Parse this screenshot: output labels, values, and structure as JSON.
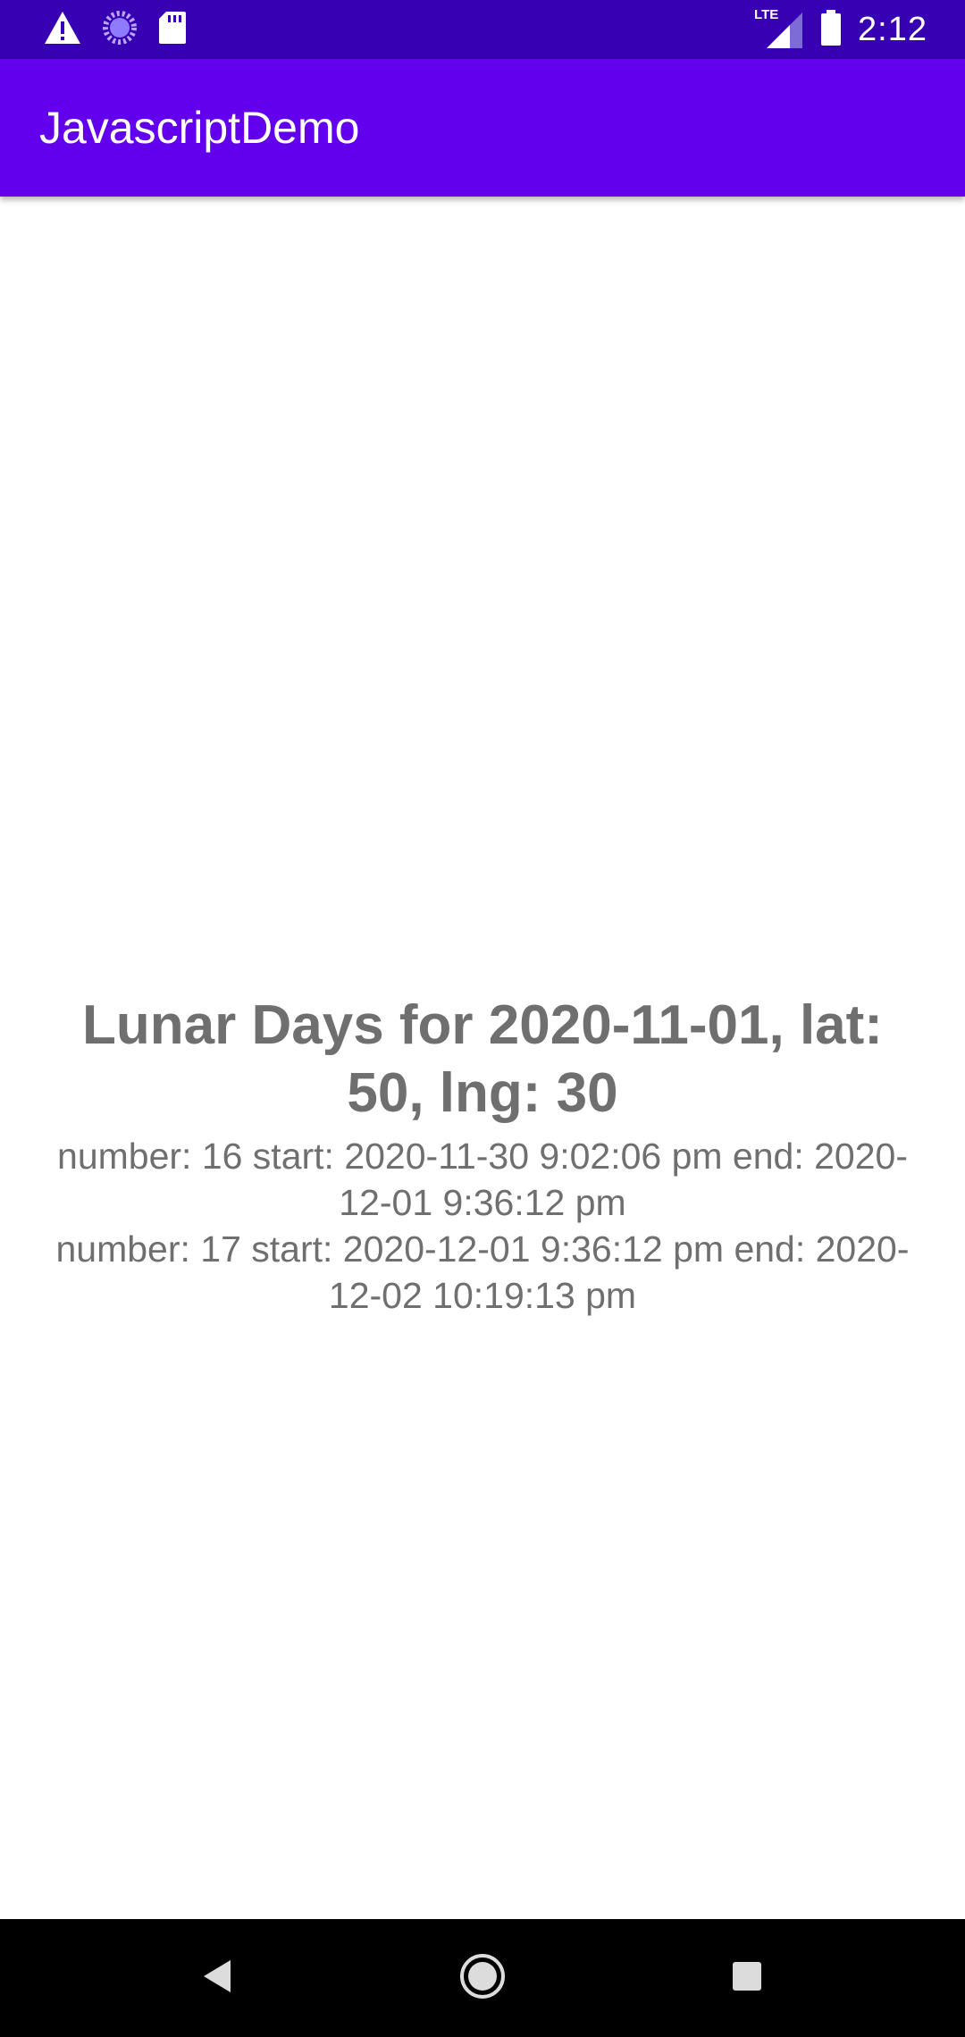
{
  "status_bar": {
    "time": "2:12",
    "network_label": "LTE",
    "icons": [
      "warning-icon",
      "loading-icon",
      "sd-card-icon",
      "signal-icon",
      "battery-icon"
    ]
  },
  "app_bar": {
    "title": "JavascriptDemo"
  },
  "main": {
    "heading": "Lunar Days for 2020-11-01, lat: 50, lng: 30",
    "lunar_days": [
      {
        "text": "number: 16 start: 2020-11-30 9:02:06 pm end: 2020-12-01 9:36:12 pm"
      },
      {
        "text": "number: 17 start: 2020-12-01 9:36:12 pm end: 2020-12-02 10:19:13 pm"
      }
    ]
  },
  "nav_bar": {
    "buttons": [
      "back-icon",
      "home-icon",
      "recents-icon"
    ]
  },
  "colors": {
    "status_bar": "#3700b3",
    "app_bar": "#6200ee",
    "text_gray": "#6f6f6f",
    "nav_bar": "#000000"
  }
}
